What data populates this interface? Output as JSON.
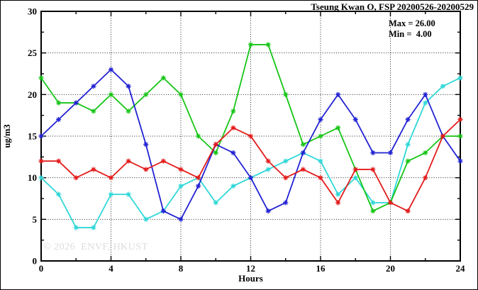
{
  "watermark": "© 2026  ENVF, HKUST",
  "annotation": {
    "max": "Max = 26.00",
    "min": "Min =  4.00"
  },
  "chart_data": {
    "type": "line",
    "title": "Tseung Kwan O, FSP 20200526-20200529",
    "xlabel": "Hours",
    "ylabel": "ug/m3",
    "xlim": [
      0,
      24
    ],
    "ylim": [
      0,
      30
    ],
    "grid": "dotted",
    "legend_position": "none",
    "max_value": 26.0,
    "min_value": 4.0,
    "x": [
      0,
      1,
      2,
      3,
      4,
      5,
      6,
      7,
      8,
      9,
      10,
      11,
      12,
      13,
      14,
      15,
      16,
      17,
      18,
      19,
      20,
      21,
      22,
      23,
      24
    ],
    "x_major_ticks": [
      0,
      4,
      8,
      12,
      16,
      20,
      24
    ],
    "x_minor_ticks": [
      2,
      6,
      10,
      14,
      18,
      22
    ],
    "y_major_ticks": [
      0,
      5,
      10,
      15,
      20,
      25,
      30
    ],
    "y_minor_ticks": [
      2.5,
      7.5,
      12.5,
      17.5,
      22.5,
      27.5
    ],
    "x_gridlines": [
      4,
      8,
      12,
      16,
      20
    ],
    "y_gridlines": [
      5,
      10,
      15,
      20,
      25
    ],
    "series": [
      {
        "name": "cyan",
        "color": "#2fd7d7",
        "values": [
          10,
          8,
          4,
          4,
          8,
          8,
          5,
          6,
          9,
          10,
          7,
          9,
          10,
          11,
          12,
          13,
          12,
          8,
          10,
          7,
          7,
          14,
          19,
          21,
          22
        ]
      },
      {
        "name": "green",
        "color": "#17c517",
        "values": [
          22,
          19,
          19,
          18,
          20,
          18,
          20,
          22,
          20,
          15,
          13,
          18,
          26,
          26,
          20,
          14,
          15,
          16,
          11,
          6,
          7,
          12,
          13,
          15,
          15
        ]
      },
      {
        "name": "blue",
        "color": "#2222d4",
        "values": [
          15,
          17,
          19,
          21,
          23,
          21,
          14,
          6,
          5,
          9,
          14,
          13,
          10,
          6,
          7,
          13,
          17,
          20,
          17,
          13,
          13,
          17,
          20,
          15,
          12
        ]
      },
      {
        "name": "red",
        "color": "#e31b1b",
        "values": [
          12,
          12,
          10,
          11,
          10,
          12,
          11,
          12,
          11,
          10,
          14,
          16,
          15,
          12,
          10,
          11,
          10,
          7,
          11,
          11,
          7,
          6,
          10,
          15,
          17
        ]
      }
    ]
  }
}
